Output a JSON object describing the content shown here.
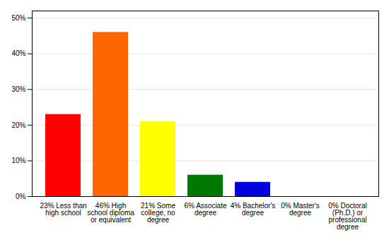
{
  "chart_data": {
    "type": "bar",
    "categories": [
      "23% Less than\nhigh school",
      "46% High\nschool diploma\nor equivalent",
      "21% Some\ncollege, no\ndegree",
      "6% Associate\ndegree",
      "4% Bachelor's\ndegree",
      "0% Master's\ndegree",
      "0% Doctoral\n(Ph.D.) or\nprofessional\ndegree"
    ],
    "values": [
      23,
      46,
      21,
      6,
      4,
      0,
      0
    ],
    "colors": [
      "#ff0000",
      "#ff6600",
      "#ffff00",
      "#007700",
      "#0000dd",
      "#9900bb",
      "#ff44dd"
    ],
    "ylim": [
      0,
      52
    ],
    "yticks": [
      {
        "value": 0,
        "label": "0%"
      },
      {
        "value": 10,
        "label": "10%"
      },
      {
        "value": 20,
        "label": "20%"
      },
      {
        "value": 30,
        "label": "30%"
      },
      {
        "value": 40,
        "label": "40%"
      },
      {
        "value": 50,
        "label": "50%"
      }
    ],
    "grid": true
  }
}
